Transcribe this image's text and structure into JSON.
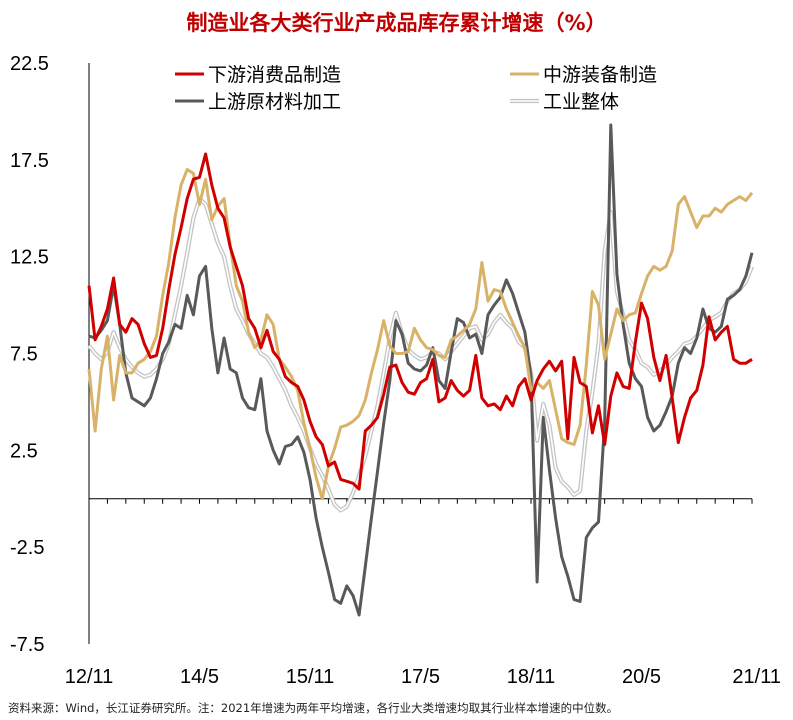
{
  "chart_data": {
    "type": "line",
    "title": "制造业各大类行业产成品库存累计增速（%）",
    "xlabel": "",
    "ylabel": "",
    "ylim": [
      -7.5,
      22.5
    ],
    "yticks": [
      "22.5",
      "17.5",
      "12.5",
      "7.5",
      "2.5",
      "-2.5",
      "-7.5"
    ],
    "ytick_values": [
      22.5,
      17.5,
      12.5,
      7.5,
      2.5,
      -2.5,
      -7.5
    ],
    "xlim": [
      0,
      108
    ],
    "xticks": [
      "12/11",
      "14/5",
      "15/11",
      "17/5",
      "18/11",
      "20/5",
      "21/11"
    ],
    "xtick_values": [
      0,
      18,
      36,
      54,
      72,
      90,
      108
    ],
    "legend": {
      "placement": "top",
      "columns": 2
    },
    "source_note": "资料来源：Wind，长江证券研究所。注：2021年增速为两年平均增速，各行业大类增速均取其行业样本增速的中位数。",
    "series": [
      {
        "name": "下游消费品制造",
        "color": "#d00000",
        "style": "solid",
        "x": [
          0,
          1,
          2,
          3,
          4,
          5,
          6,
          7,
          8,
          9,
          10,
          11,
          12,
          13,
          14,
          15,
          16,
          17,
          18,
          19,
          20,
          21,
          22,
          23,
          24,
          25,
          26,
          27,
          28,
          29,
          30,
          31,
          32,
          33,
          34,
          35,
          36,
          37,
          38,
          39,
          40,
          41,
          42,
          43,
          44,
          45,
          46,
          47,
          48,
          49,
          50,
          51,
          52,
          53,
          54,
          55,
          56,
          57,
          58,
          59,
          60,
          61,
          62,
          63,
          64,
          65,
          66,
          67,
          68,
          69,
          70,
          71,
          72,
          73,
          74,
          75,
          76,
          77,
          78,
          79,
          80,
          81,
          82,
          83,
          84,
          85,
          86,
          87,
          88,
          89,
          90,
          91,
          92,
          93,
          94,
          95,
          96,
          97,
          98,
          99,
          100,
          101,
          102,
          103,
          104,
          105,
          106,
          107,
          108
        ],
        "values": [
          11.0,
          8.2,
          8.9,
          9.8,
          11.4,
          9.0,
          8.6,
          9.3,
          9.0,
          8.0,
          7.3,
          7.4,
          8.8,
          10.8,
          12.6,
          14.0,
          15.5,
          16.5,
          16.6,
          17.8,
          16.2,
          15.0,
          14.5,
          13.0,
          12.0,
          11.0,
          9.3,
          8.8,
          7.8,
          8.7,
          7.6,
          7.2,
          6.3,
          6.0,
          5.8,
          5.1,
          4.0,
          3.2,
          2.8,
          1.7,
          1.9,
          1.0,
          0.9,
          0.8,
          0.5,
          3.5,
          3.8,
          4.2,
          5.4,
          6.8,
          6.9,
          6.0,
          5.5,
          5.4,
          6.0,
          6.2,
          7.2,
          5.0,
          5.2,
          6.1,
          5.6,
          5.3,
          5.6,
          7.4,
          5.2,
          4.8,
          4.9,
          4.6,
          5.3,
          4.8,
          5.8,
          6.2,
          5.1,
          6.1,
          6.7,
          7.1,
          6.6,
          7.1,
          3.1,
          7.3,
          6.0,
          5.8,
          3.4,
          4.8,
          2.8,
          5.3,
          6.5,
          5.8,
          5.7,
          8.1,
          10.1,
          9.3,
          7.3,
          6.1,
          7.4,
          5.2,
          2.9,
          4.2,
          5.2,
          5.6,
          6.9,
          9.4,
          8.2,
          8.6,
          8.9,
          7.2,
          7.0,
          7.0,
          7.2
        ]
      },
      {
        "name": "中游装备制造",
        "color": "#d9b26a",
        "style": "solid",
        "x": [
          0,
          1,
          2,
          3,
          4,
          5,
          6,
          7,
          8,
          9,
          10,
          11,
          12,
          13,
          14,
          15,
          16,
          17,
          18,
          19,
          20,
          21,
          22,
          23,
          24,
          25,
          26,
          27,
          28,
          29,
          30,
          31,
          32,
          33,
          34,
          35,
          36,
          37,
          38,
          39,
          40,
          41,
          42,
          43,
          44,
          45,
          46,
          47,
          48,
          49,
          50,
          51,
          52,
          53,
          54,
          55,
          56,
          57,
          58,
          59,
          60,
          61,
          62,
          63,
          64,
          65,
          66,
          67,
          68,
          69,
          70,
          71,
          72,
          73,
          74,
          75,
          76,
          77,
          78,
          79,
          80,
          81,
          82,
          83,
          84,
          85,
          86,
          87,
          88,
          89,
          90,
          91,
          92,
          93,
          94,
          95,
          96,
          97,
          98,
          99,
          100,
          101,
          102,
          103,
          104,
          105,
          106,
          107,
          108
        ],
        "values": [
          6.7,
          3.5,
          6.7,
          8.4,
          5.1,
          7.4,
          6.5,
          6.5,
          7.0,
          7.2,
          7.6,
          8.4,
          10.5,
          12.2,
          14.5,
          16.2,
          17.0,
          16.8,
          15.2,
          16.5,
          14.4,
          15.1,
          15.5,
          13.1,
          11.0,
          10.2,
          8.6,
          7.8,
          8.2,
          9.5,
          9.0,
          7.2,
          6.8,
          6.3,
          5.6,
          3.9,
          2.6,
          1.1,
          0.0,
          1.7,
          2.6,
          3.7,
          3.8,
          4.0,
          4.3,
          5.1,
          6.5,
          7.7,
          9.2,
          7.9,
          7.5,
          7.5,
          7.6,
          8.8,
          8.2,
          7.8,
          7.7,
          7.4,
          7.3,
          8.2,
          8.4,
          8.7,
          9.0,
          9.8,
          12.2,
          10.2,
          10.8,
          10.7,
          9.8,
          9.1,
          8.4,
          7.8,
          5.6,
          6.0,
          5.7,
          6.1,
          4.6,
          3.1,
          2.9,
          2.8,
          3.8,
          6.9,
          10.7,
          10.0,
          7.2,
          8.5,
          9.8,
          9.2,
          9.5,
          9.6,
          10.6,
          11.5,
          12.0,
          11.8,
          12.0,
          12.8,
          15.2,
          15.6,
          14.8,
          14.0,
          14.6,
          14.6,
          15.0,
          14.8,
          15.2,
          15.4,
          15.6,
          15.4,
          15.8
        ]
      },
      {
        "name": "上游原材料加工",
        "color": "#595959",
        "style": "solid",
        "x": [
          0,
          1,
          2,
          3,
          4,
          5,
          6,
          7,
          8,
          9,
          10,
          11,
          12,
          13,
          14,
          15,
          16,
          17,
          18,
          19,
          20,
          21,
          22,
          23,
          24,
          25,
          26,
          27,
          28,
          29,
          30,
          31,
          32,
          33,
          34,
          35,
          36,
          37,
          38,
          39,
          40,
          41,
          42,
          43,
          44,
          45,
          46,
          47,
          48,
          49,
          50,
          51,
          52,
          53,
          54,
          55,
          56,
          57,
          58,
          59,
          60,
          61,
          62,
          63,
          64,
          65,
          66,
          67,
          68,
          69,
          70,
          71,
          72,
          73,
          74,
          75,
          76,
          77,
          78,
          79,
          80,
          81,
          82,
          83,
          84,
          85,
          86,
          87,
          88,
          89,
          90,
          91,
          92,
          93,
          94,
          95,
          96,
          97,
          98,
          99,
          100,
          101,
          102,
          103,
          104,
          105,
          106,
          107,
          108
        ],
        "values": [
          8.4,
          8.3,
          8.7,
          9.2,
          11.0,
          9.0,
          6.5,
          5.2,
          5.0,
          4.8,
          5.2,
          6.2,
          7.5,
          8.1,
          9.0,
          8.8,
          10.5,
          9.5,
          11.5,
          12.0,
          8.8,
          6.5,
          8.3,
          6.7,
          6.5,
          5.2,
          4.7,
          4.6,
          6.2,
          3.5,
          2.5,
          1.8,
          2.7,
          2.8,
          3.2,
          2.4,
          1.0,
          -1.0,
          -2.5,
          -3.8,
          -5.2,
          -5.4,
          -4.5,
          -5.0,
          -6.0,
          -3.5,
          -1.0,
          1.4,
          3.9,
          6.1,
          9.2,
          8.5,
          7.0,
          6.7,
          6.6,
          6.9,
          7.8,
          6.1,
          5.7,
          7.6,
          9.3,
          9.1,
          8.3,
          8.5,
          7.5,
          9.5,
          10.0,
          10.4,
          11.3,
          10.6,
          9.6,
          8.6,
          6.3,
          -4.3,
          4.2,
          1.5,
          -1.0,
          -3.0,
          -4.0,
          -5.2,
          -5.3,
          -2.0,
          -1.5,
          -1.2,
          4.0,
          19.3,
          11.6,
          9.0,
          7.0,
          6.2,
          5.8,
          4.2,
          3.5,
          3.8,
          4.5,
          5.3,
          7.0,
          7.8,
          7.5,
          8.3,
          9.8,
          8.8,
          8.6,
          8.9,
          10.3,
          10.5,
          10.8,
          11.5,
          12.7
        ]
      },
      {
        "name": "工业整体",
        "color": "#c4c4c4",
        "style": "double",
        "x": [
          0,
          1,
          2,
          3,
          4,
          5,
          6,
          7,
          8,
          9,
          10,
          11,
          12,
          13,
          14,
          15,
          16,
          17,
          18,
          19,
          20,
          21,
          22,
          23,
          24,
          25,
          26,
          27,
          28,
          29,
          30,
          31,
          32,
          33,
          34,
          35,
          36,
          37,
          38,
          39,
          40,
          41,
          42,
          43,
          44,
          45,
          46,
          47,
          48,
          49,
          50,
          51,
          52,
          53,
          54,
          55,
          56,
          57,
          58,
          59,
          60,
          61,
          62,
          63,
          64,
          65,
          66,
          67,
          68,
          69,
          70,
          71,
          72,
          73,
          74,
          75,
          76,
          77,
          78,
          79,
          80,
          81,
          82,
          83,
          84,
          85,
          86,
          87,
          88,
          89,
          90,
          91,
          92,
          93,
          94,
          95,
          96,
          97,
          98,
          99,
          100,
          101,
          102,
          103,
          104,
          105,
          106,
          107,
          108
        ],
        "values": [
          7.9,
          7.5,
          7.2,
          7.6,
          8.6,
          7.8,
          7.2,
          6.8,
          6.5,
          6.3,
          6.4,
          6.7,
          7.2,
          8.0,
          9.5,
          11.0,
          12.7,
          14.5,
          15.5,
          15.2,
          14.2,
          13.2,
          12.5,
          11.0,
          9.8,
          9.2,
          8.5,
          8.0,
          7.5,
          7.3,
          6.8,
          6.2,
          5.6,
          4.8,
          4.2,
          3.5,
          2.6,
          1.8,
          1.2,
          0.5,
          -0.3,
          -0.6,
          -0.4,
          0.3,
          1.2,
          2.2,
          3.5,
          4.8,
          6.5,
          8.3,
          9.6,
          8.5,
          7.7,
          7.4,
          7.2,
          7.3,
          7.6,
          7.5,
          7.2,
          7.6,
          8.0,
          8.4,
          8.8,
          8.9,
          8.2,
          8.5,
          9.1,
          9.5,
          9.1,
          8.8,
          8.1,
          7.8,
          6.5,
          3.0,
          4.9,
          3.8,
          1.6,
          0.9,
          0.6,
          0.2,
          0.4,
          3.5,
          5.5,
          8.0,
          12.8,
          14.8,
          10.7,
          9.5,
          8.2,
          7.7,
          7.0,
          6.8,
          6.4,
          6.6,
          6.9,
          7.3,
          7.6,
          8.0,
          8.1,
          8.4,
          8.8,
          9.2,
          9.4,
          9.6,
          10.2,
          10.6,
          10.8,
          11.2,
          12.0
        ]
      }
    ]
  }
}
